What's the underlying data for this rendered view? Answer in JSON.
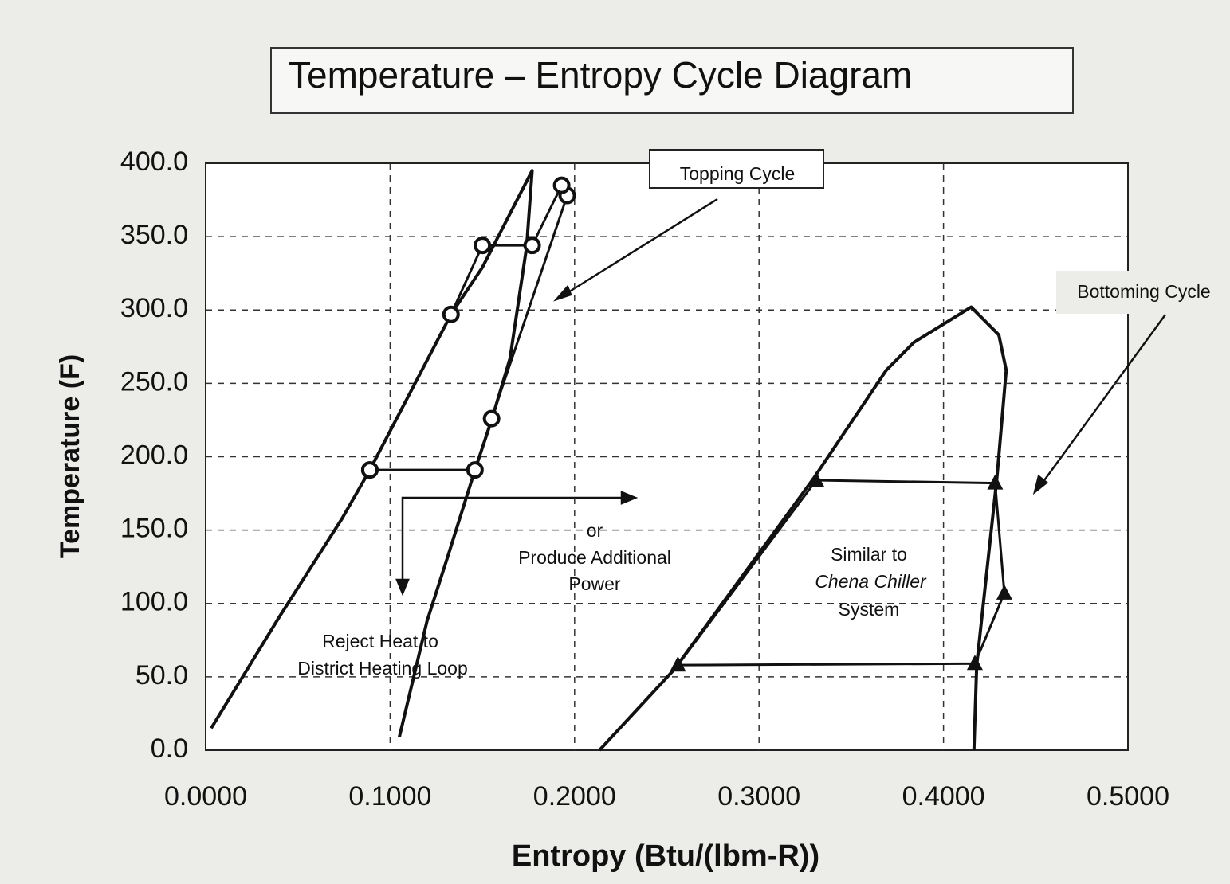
{
  "chart_data": {
    "type": "line",
    "title": "Temperature – Entropy Cycle Diagram",
    "xlabel": "Entropy (Btu/(lbm-R))",
    "ylabel": "Temperature (F)",
    "xlim": [
      0,
      0.5
    ],
    "ylim": [
      0,
      400
    ],
    "xticks": [
      {
        "value": 0,
        "label": "0.0000"
      },
      {
        "value": 0.1,
        "label": "0.1000"
      },
      {
        "value": 0.2,
        "label": "0.2000"
      },
      {
        "value": 0.3,
        "label": "0.3000"
      },
      {
        "value": 0.4,
        "label": "0.4000"
      },
      {
        "value": 0.5,
        "label": "0.5000"
      }
    ],
    "yticks": [
      {
        "value": 0,
        "label": "0.0"
      },
      {
        "value": 50,
        "label": "50.0"
      },
      {
        "value": 100,
        "label": "100.0"
      },
      {
        "value": 150,
        "label": "150.0"
      },
      {
        "value": 200,
        "label": "200.0"
      },
      {
        "value": 250,
        "label": "250.0"
      },
      {
        "value": 300,
        "label": "300.0"
      },
      {
        "value": 350,
        "label": "350.0"
      },
      {
        "value": 400,
        "label": "400.0"
      }
    ],
    "grid": true,
    "series": [
      {
        "color": "#111111",
        "x": [
          0.003,
          0.04,
          0.074,
          0.089,
          0.133,
          0.15,
          0.177,
          0.174,
          0.165,
          0.155,
          0.146,
          0.131,
          0.12,
          0.105
        ],
        "values": [
          15,
          91,
          158,
          191,
          297,
          329,
          395,
          343,
          267,
          225,
          191,
          131,
          88,
          9
        ]
      },
      {
        "color": "#111111",
        "marker": "circle",
        "x": [
          0.089,
          0.146,
          0.155,
          0.196,
          0.193,
          0.177,
          0.15,
          0.133,
          0.089
        ],
        "values": [
          191,
          191,
          226,
          378,
          385,
          344,
          344,
          297,
          191
        ]
      },
      {
        "color": "#111111",
        "x": [
          0.2135,
          0.254,
          0.33,
          0.369,
          0.384,
          0.415,
          0.43,
          0.434,
          0.429,
          0.418,
          0.4165
        ],
        "values": [
          0,
          55,
          186,
          259,
          278,
          302,
          283,
          259,
          186,
          58,
          0
        ]
      },
      {
        "color": "#111111",
        "marker": "triangle",
        "x": [
          0.256,
          0.331,
          0.428,
          0.433,
          0.417,
          0.256
        ],
        "values": [
          58,
          184,
          182,
          107,
          59,
          58
        ]
      }
    ],
    "annotations": [
      "Topping Cycle",
      "Bottoming Cycle",
      "or",
      "Produce Additional",
      "Power",
      "Reject Heat to",
      "District Heating Loop",
      "Similar to",
      "Chena Chiller",
      "System"
    ]
  }
}
